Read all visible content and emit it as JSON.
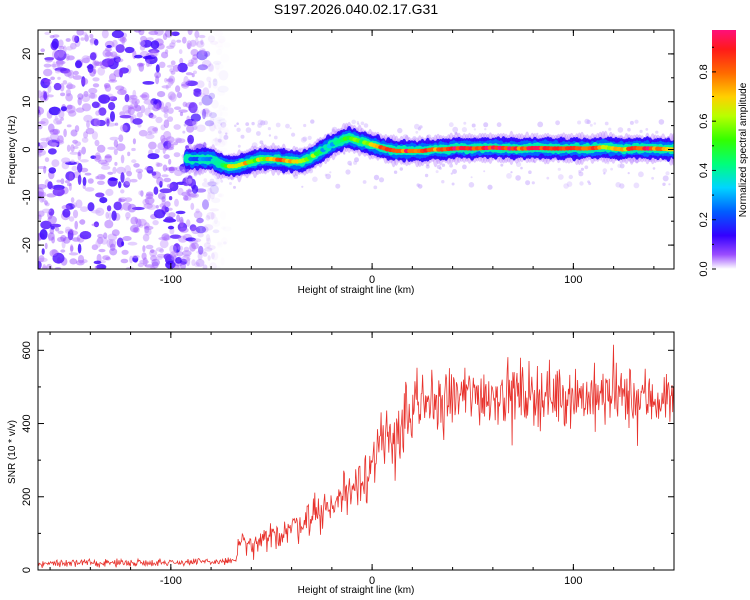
{
  "chart_data": [
    {
      "type": "heatmap",
      "title": "S197.2026.040.02.17.G31",
      "xlabel": "Height of straight line (km)",
      "ylabel": "Frequency (Hz)",
      "xlim": [
        -166,
        150
      ],
      "ylim": [
        -25,
        25
      ],
      "xticks": [
        -100,
        0,
        100
      ],
      "yticks": [
        -20,
        -10,
        0,
        10,
        20
      ],
      "colorbar": {
        "label": "Normalized spectral amplitude",
        "range": [
          0,
          0.97
        ],
        "ticks": [
          0.0,
          0.2,
          0.4,
          0.6,
          0.8
        ]
      },
      "noise_region": {
        "x_range": [
          -166,
          -80
        ],
        "freq_range": [
          -25,
          25
        ]
      },
      "ridge": {
        "x": [
          -92,
          -85,
          -80,
          -76,
          -72,
          -68,
          -64,
          -60,
          -55,
          -50,
          -45,
          -40,
          -36,
          -32,
          -28,
          -24,
          -20,
          -16,
          -12,
          -8,
          -4,
          0,
          4,
          8,
          12,
          16,
          20,
          25,
          30,
          35,
          40,
          45,
          50,
          55,
          60,
          65,
          70,
          75,
          80,
          85,
          90,
          95,
          100,
          105,
          110,
          115,
          120,
          125,
          130,
          135,
          140,
          145,
          150
        ],
        "freq": [
          -2,
          -2,
          -2,
          -3,
          -3.5,
          -3.5,
          -3,
          -2.5,
          -2,
          -2,
          -2.2,
          -2.5,
          -2.5,
          -2,
          -1,
          0,
          1,
          1.8,
          2.5,
          2,
          1.5,
          1,
          0.5,
          0,
          -0.3,
          -0.3,
          -0.3,
          -0.3,
          0,
          0,
          0.2,
          0.3,
          0.2,
          0.3,
          0.4,
          0.3,
          0.2,
          0.2,
          0.3,
          0.3,
          0.2,
          0.2,
          0.3,
          0.2,
          0.3,
          0.5,
          0.2,
          0,
          0.3,
          0.2,
          0.2,
          0.1,
          0
        ],
        "amplitude": [
          0.15,
          0.3,
          0.35,
          0.45,
          0.6,
          0.75,
          0.7,
          0.55,
          0.6,
          0.75,
          0.8,
          0.7,
          0.65,
          0.6,
          0.45,
          0.35,
          0.4,
          0.45,
          0.5,
          0.55,
          0.6,
          0.7,
          0.8,
          0.85,
          0.85,
          0.85,
          0.85,
          0.8,
          0.8,
          0.85,
          0.9,
          0.9,
          0.85,
          0.9,
          0.9,
          0.95,
          0.9,
          0.9,
          0.9,
          0.95,
          0.9,
          0.85,
          0.85,
          0.8,
          0.85,
          0.7,
          0.7,
          0.8,
          0.85,
          0.85,
          0.8,
          0.75,
          0.7
        ]
      }
    },
    {
      "type": "line",
      "xlabel": "Height of straight line (km)",
      "ylabel": "SNR (10 * v/v)",
      "xlim": [
        -166,
        150
      ],
      "ylim": [
        0,
        650
      ],
      "xticks": [
        -100,
        0,
        100
      ],
      "yticks": [
        0,
        200,
        400,
        600
      ],
      "color": "#e8322c",
      "series": [
        {
          "name": "SNR",
          "x": [
            -166,
            -120,
            -80,
            -68,
            -66,
            -60,
            -50,
            -40,
            -30,
            -20,
            -10,
            0,
            10,
            20,
            30,
            40,
            50,
            60,
            70,
            80,
            90,
            100,
            110,
            120,
            130,
            140,
            150
          ],
          "values": [
            18,
            20,
            22,
            25,
            80,
            60,
            90,
            115,
            150,
            175,
            230,
            290,
            370,
            420,
            460,
            470,
            480,
            480,
            485,
            480,
            478,
            480,
            470,
            475,
            470,
            468,
            470
          ]
        }
      ]
    }
  ]
}
